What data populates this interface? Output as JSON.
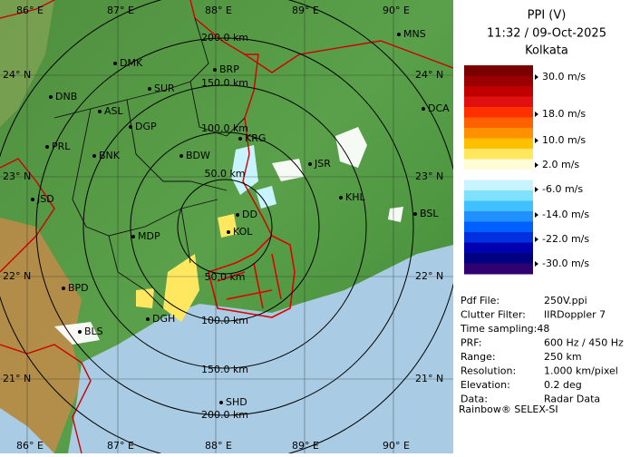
{
  "panel": {
    "title": "PPI (V)",
    "timestamp": "11:32 / 09-Oct-2025",
    "station": "Kolkata"
  },
  "legend": {
    "labels": [
      "30.0 m/s",
      "18.0 m/s",
      "10.0 m/s",
      "2.0 m/s",
      "-6.0 m/s",
      "-14.0 m/s",
      "-22.0 m/s",
      "-30.0 m/s"
    ],
    "colors": [
      "#7a0000",
      "#9a0000",
      "#c00000",
      "#e01010",
      "#ff3000",
      "#ff6000",
      "#ff9000",
      "#ffc000",
      "#ffe860",
      "#fffcd8",
      "#ffffff",
      "#c8f4ff",
      "#80e0ff",
      "#40c0ff",
      "#2090ff",
      "#0060ff",
      "#0030e0",
      "#0000b0",
      "#000080",
      "#300070"
    ]
  },
  "info": {
    "rows": [
      [
        "Pdf File:",
        "250V.ppi"
      ],
      [
        "Clutter Filter:",
        "IIRDoppler 7"
      ],
      [
        "Time sampling:48"
      ],
      [
        "PRF:",
        "600 Hz / 450 Hz"
      ],
      [
        "Range:",
        "250 km"
      ],
      [
        "Resolution:",
        "1.000 km/pixel"
      ],
      [
        "Elevation:",
        "0.2 deg"
      ],
      [
        "Data:",
        "Radar Data"
      ]
    ]
  },
  "footer": "Rainbow® SELEX-SI",
  "map": {
    "lon_labels_top": [
      "86° E",
      "87° E",
      "88° E",
      "89° E",
      "90° E"
    ],
    "lon_labels_bottom": [
      "86° E",
      "87° E",
      "88° E",
      "89° E",
      "90° E"
    ],
    "lat_labels_left": [
      "24° N",
      "23° N",
      "22° N",
      "21° N"
    ],
    "lat_labels_right": [
      "24° N",
      "23° N",
      "22° N",
      "21° N"
    ],
    "range_labels": [
      "200.0 km",
      "150.0 km",
      "100.0 km",
      "50.0 km",
      "50.0 km",
      "100.0 km",
      "150.0 km",
      "200.0 km"
    ],
    "places": [
      "MNS",
      "DMK",
      "BRP",
      "DNB",
      "SUR",
      "DCA",
      "ASL",
      "DGP",
      "PRL",
      "BNK",
      "KRG",
      "BDW",
      "JSR",
      "KHL",
      "JSD",
      "BSL",
      "DD",
      "KOL",
      "MDP",
      "BPD",
      "DGH",
      "BLS",
      "SHD"
    ]
  }
}
